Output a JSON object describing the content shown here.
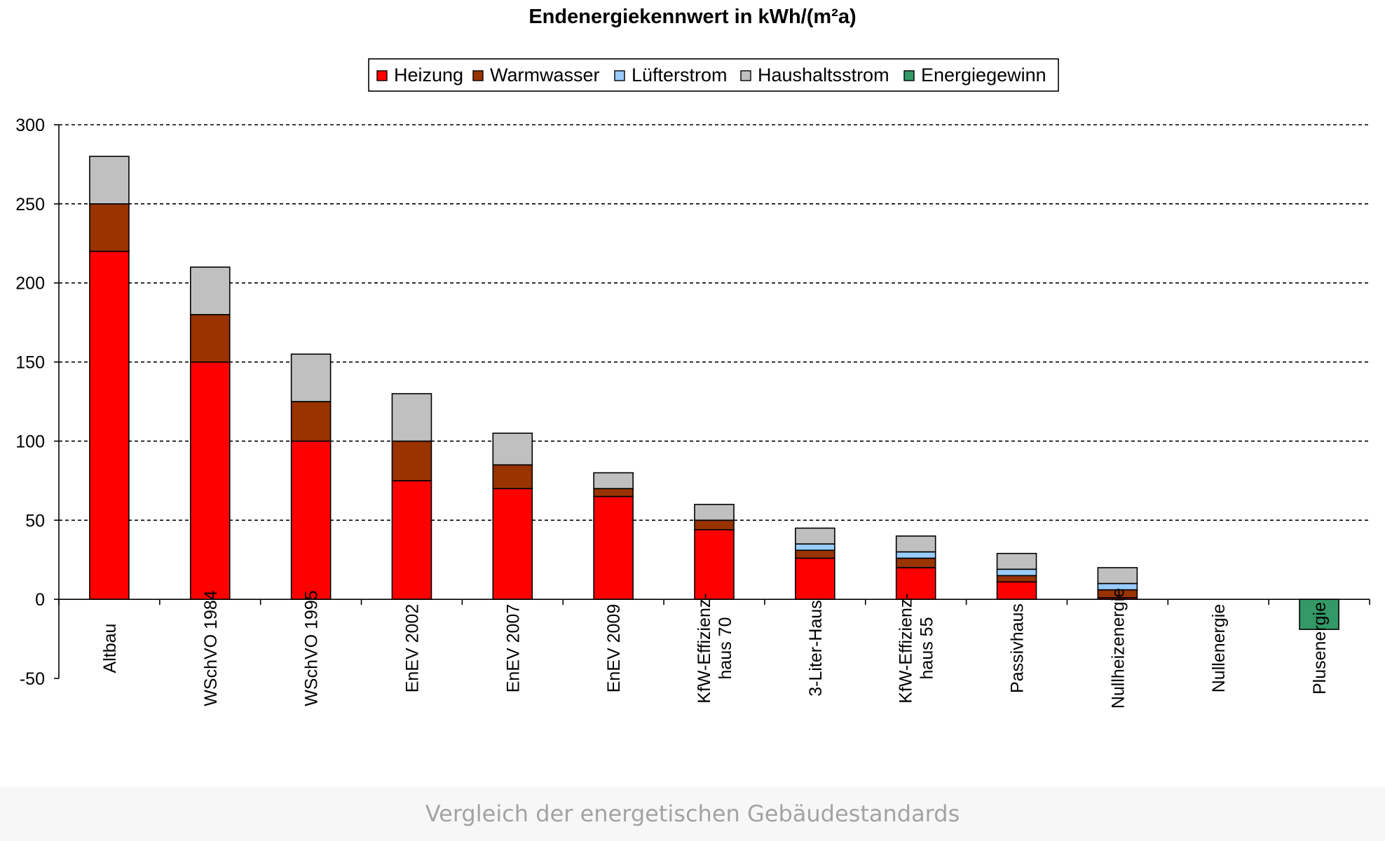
{
  "caption": "Vergleich der energetischen Gebäudestandards",
  "chart_data": {
    "type": "bar",
    "stacked": true,
    "title": "Endenergiekennwert in kWh/(m²a)",
    "xlabel": "",
    "ylabel": "",
    "ylim": [
      -50,
      300
    ],
    "yticks": [
      300,
      250,
      200,
      150,
      100,
      50,
      0,
      -50
    ],
    "grid": "horizontal dashed",
    "legend_position": "top-center",
    "categories": [
      [
        "Altbau"
      ],
      [
        "WSchVO 1984"
      ],
      [
        "WSchVO 1995"
      ],
      [
        "EnEV 2002"
      ],
      [
        "EnEV 2007"
      ],
      [
        "EnEV 2009"
      ],
      [
        "KfW-Effizienz-",
        "haus 70"
      ],
      [
        "3-Liter-Haus"
      ],
      [
        "KfW-Effizienz-",
        "haus 55"
      ],
      [
        "Passivhaus"
      ],
      [
        "Nullheizenergie"
      ],
      [
        "Nullenergie"
      ],
      [
        "Plusenergie"
      ]
    ],
    "series": [
      {
        "name": "Heizung",
        "color": "#ff0000",
        "values": [
          220,
          150,
          100,
          75,
          70,
          65,
          44,
          26,
          20,
          11,
          1,
          0,
          0
        ]
      },
      {
        "name": "Warmwasser",
        "color": "#993300",
        "values": [
          30,
          30,
          25,
          25,
          15,
          5,
          6,
          5,
          6,
          4,
          5,
          0,
          0
        ]
      },
      {
        "name": "Lüfterstrom",
        "color": "#99ccff",
        "values": [
          0,
          0,
          0,
          0,
          0,
          0,
          0,
          4,
          4,
          4,
          4,
          0,
          0
        ]
      },
      {
        "name": "Haushaltsstrom",
        "color": "#c0c0c0",
        "values": [
          30,
          30,
          30,
          30,
          20,
          10,
          10,
          10,
          10,
          10,
          10,
          0,
          0
        ]
      },
      {
        "name": "Energiegewinn",
        "color": "#339966",
        "values": [
          0,
          0,
          0,
          0,
          0,
          0,
          0,
          0,
          0,
          0,
          0,
          0,
          -19
        ]
      }
    ]
  }
}
